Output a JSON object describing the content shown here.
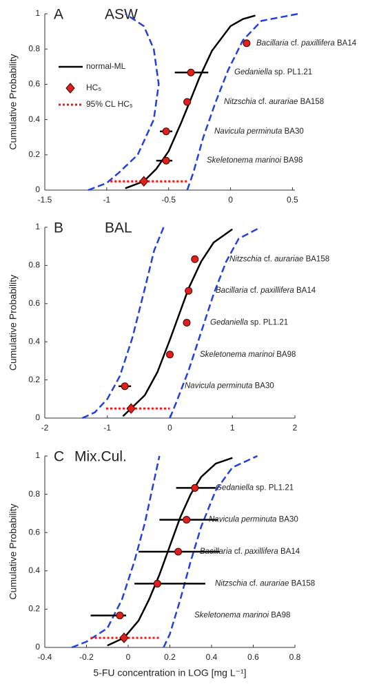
{
  "chart_data": [
    {
      "type": "cdf",
      "panel": "A",
      "title": "ASW",
      "ylabel": "Cumulative Probability",
      "xlim": [
        -1.5,
        0.52
      ],
      "xticks": [
        -1.5,
        -1,
        -0.5,
        0,
        0.5
      ],
      "ylim": [
        0,
        1
      ],
      "yticks": [
        0,
        0.2,
        0.4,
        0.6,
        0.8,
        1
      ],
      "legend": "upper left",
      "fit": {
        "name": "normal-ML",
        "color": "#000000",
        "x": [
          -0.85,
          -0.7,
          -0.6,
          -0.5,
          -0.4,
          -0.33,
          -0.25,
          -0.15,
          0,
          0.1,
          0.2
        ],
        "y": [
          0.01,
          0.05,
          0.12,
          0.22,
          0.38,
          0.5,
          0.64,
          0.79,
          0.93,
          0.97,
          0.99
        ]
      },
      "ci_lower": {
        "color": "#2040e0",
        "x": [
          -1.15,
          -1.0,
          -0.9,
          -0.75,
          -0.62,
          -0.58,
          -0.62,
          -0.7,
          -0.85
        ],
        "y": [
          0,
          0.04,
          0.1,
          0.2,
          0.4,
          0.6,
          0.8,
          0.93,
          1
        ]
      },
      "ci_upper": {
        "color": "#2040e0",
        "x": [
          -0.35,
          -0.3,
          -0.22,
          -0.12,
          -0.02,
          0.1,
          0.25,
          0.55
        ],
        "y": [
          0,
          0.1,
          0.3,
          0.5,
          0.68,
          0.85,
          0.96,
          1
        ]
      },
      "hc5": {
        "name": "HC₅",
        "color": "#e0201a",
        "x": -0.7,
        "y": 0.05
      },
      "hc5_cl": {
        "name": "95% CL HC₅",
        "color": "#ff1010",
        "x": [
          -0.97,
          -0.35
        ],
        "y": 0.05
      },
      "points": {
        "color": "#e0201a",
        "x": [
          0.13,
          -0.32,
          -0.35,
          -0.52,
          -0.52
        ],
        "y": [
          0.833,
          0.667,
          0.5,
          0.333,
          0.167
        ],
        "x_low": [
          null,
          -0.45,
          -0.38,
          -0.57,
          -0.6
        ],
        "x_high": [
          null,
          -0.18,
          -0.32,
          -0.47,
          -0.47
        ],
        "labels": [
          [
            {
              "text": "Bacillaria",
              "italic": true
            },
            {
              "text": " cf. ",
              "italic": false
            },
            {
              "text": "paxillifera",
              "italic": true
            },
            {
              "text": " BA14",
              "italic": false
            }
          ],
          [
            {
              "text": "Gedaniella",
              "italic": true
            },
            {
              "text": "  sp. PL1.21",
              "italic": false
            }
          ],
          [
            {
              "text": "Nitzschia",
              "italic": true
            },
            {
              "text": " cf. ",
              "italic": false
            },
            {
              "text": "aurariae",
              "italic": true
            },
            {
              "text": " BA158",
              "italic": false
            }
          ],
          [
            {
              "text": "Navicula perminuta",
              "italic": true
            },
            {
              "text": " BA30",
              "italic": false
            }
          ],
          [
            {
              "text": "Skeletonema marinoi",
              "italic": true
            },
            {
              "text": " BA98",
              "italic": false
            }
          ]
        ]
      }
    },
    {
      "type": "cdf",
      "panel": "B",
      "title": "BAL",
      "ylabel": "Cumulative Probability",
      "xlim": [
        -2,
        2
      ],
      "xticks": [
        -2,
        -1,
        0,
        1,
        2
      ],
      "ylim": [
        0,
        1
      ],
      "yticks": [
        0,
        0.2,
        0.4,
        0.6,
        0.8,
        1
      ],
      "fit": {
        "color": "#000000",
        "x": [
          -0.75,
          -0.62,
          -0.4,
          -0.2,
          0,
          0.1,
          0.3,
          0.5,
          0.7,
          1.0
        ],
        "y": [
          0.01,
          0.05,
          0.12,
          0.24,
          0.41,
          0.5,
          0.68,
          0.82,
          0.92,
          0.99
        ]
      },
      "ci_lower": {
        "color": "#2040e0",
        "x": [
          -1.4,
          -1.2,
          -1.0,
          -0.8,
          -0.6,
          -0.4,
          -0.25,
          -0.1
        ],
        "y": [
          0,
          0.03,
          0.1,
          0.22,
          0.42,
          0.68,
          0.88,
          1
        ]
      },
      "ci_upper": {
        "color": "#2040e0",
        "x": [
          0,
          0.1,
          0.3,
          0.5,
          0.7,
          0.9,
          1.1,
          1.45
        ],
        "y": [
          0,
          0.08,
          0.25,
          0.45,
          0.65,
          0.82,
          0.94,
          1
        ]
      },
      "hc5": {
        "color": "#e0201a",
        "x": -0.62,
        "y": 0.05
      },
      "hc5_cl": {
        "color": "#ff1010",
        "x": [
          -1.02,
          0.0
        ],
        "y": 0.05
      },
      "points": {
        "color": "#e0201a",
        "x": [
          0.4,
          0.3,
          0.27,
          0,
          -0.72
        ],
        "y": [
          0.833,
          0.667,
          0.5,
          0.333,
          0.167
        ],
        "x_low": [
          null,
          null,
          null,
          null,
          -0.82
        ],
        "x_high": [
          null,
          null,
          null,
          null,
          -0.62
        ],
        "labels": [
          [
            {
              "text": "Nitzschia",
              "italic": true
            },
            {
              "text": " cf. ",
              "italic": false
            },
            {
              "text": "aurariae",
              "italic": true
            },
            {
              "text": " BA158",
              "italic": false
            }
          ],
          [
            {
              "text": "Bacillaria",
              "italic": true
            },
            {
              "text": " cf. ",
              "italic": false
            },
            {
              "text": "paxillifera",
              "italic": true
            },
            {
              "text": " BA14",
              "italic": false
            }
          ],
          [
            {
              "text": "Gedaniella",
              "italic": true
            },
            {
              "text": "  sp. PL1.21",
              "italic": false
            }
          ],
          [
            {
              "text": "Skeletonema marinoi",
              "italic": true
            },
            {
              "text": " BA98",
              "italic": false
            }
          ],
          [
            {
              "text": "Navicula perminuta",
              "italic": true
            },
            {
              "text": " BA30",
              "italic": false
            }
          ]
        ]
      }
    },
    {
      "type": "cdf",
      "panel": "C",
      "title": "Mix.Cul.",
      "ylabel": "Cumulative Probability",
      "xlabel": "5-FU concentration in LOG [mg L⁻¹]",
      "xlim": [
        -0.4,
        0.8
      ],
      "xticks": [
        -0.4,
        -0.2,
        0,
        0.2,
        0.4,
        0.6,
        0.8
      ],
      "ylim": [
        0,
        1
      ],
      "yticks": [
        0,
        0.2,
        0.4,
        0.6,
        0.8,
        1
      ],
      "fit": {
        "color": "#000000",
        "x": [
          -0.1,
          -0.02,
          0.05,
          0.1,
          0.15,
          0.19,
          0.25,
          0.3,
          0.35,
          0.42,
          0.5
        ],
        "y": [
          0.01,
          0.05,
          0.14,
          0.25,
          0.38,
          0.5,
          0.68,
          0.8,
          0.89,
          0.96,
          0.99
        ]
      },
      "ci_lower": {
        "color": "#2040e0",
        "x": [
          -0.27,
          -0.2,
          -0.1,
          -0.03,
          0.03,
          0.08,
          0.12,
          0.15
        ],
        "y": [
          0,
          0.03,
          0.1,
          0.25,
          0.45,
          0.65,
          0.85,
          1
        ]
      },
      "ci_upper": {
        "color": "#2040e0",
        "x": [
          0.17,
          0.2,
          0.25,
          0.3,
          0.35,
          0.42,
          0.5,
          0.62
        ],
        "y": [
          0,
          0.07,
          0.25,
          0.45,
          0.63,
          0.82,
          0.94,
          1
        ]
      },
      "hc5": {
        "color": "#e0201a",
        "x": -0.02,
        "y": 0.05
      },
      "hc5_cl": {
        "color": "#ff1010",
        "x": [
          -0.18,
          0.15
        ],
        "y": 0.05
      },
      "points": {
        "color": "#e0201a",
        "x": [
          0.32,
          0.28,
          0.24,
          0.14,
          -0.04
        ],
        "y": [
          0.833,
          0.667,
          0.5,
          0.333,
          0.167
        ],
        "x_low": [
          0.23,
          0.15,
          0.05,
          0.03,
          -0.18
        ],
        "x_high": [
          0.42,
          0.43,
          0.44,
          0.37,
          -0.01
        ],
        "labels": [
          [
            {
              "text": "Gedaniella",
              "italic": true
            },
            {
              "text": "  sp. PL1.21",
              "italic": false
            }
          ],
          [
            {
              "text": "Navicula perminuta",
              "italic": true
            },
            {
              "text": " BA30",
              "italic": false
            }
          ],
          [
            {
              "text": "Bacillaria",
              "italic": true
            },
            {
              "text": " cf. ",
              "italic": false
            },
            {
              "text": "paxillifera",
              "italic": true
            },
            {
              "text": " BA14",
              "italic": false
            }
          ],
          [
            {
              "text": "Nitzschia",
              "italic": true
            },
            {
              "text": " cf. ",
              "italic": false
            },
            {
              "text": "aurariae",
              "italic": true
            },
            {
              "text": " BA158",
              "italic": false
            }
          ],
          [
            {
              "text": "Skeletonema marinoi",
              "italic": true
            },
            {
              "text": " BA98",
              "italic": false
            }
          ]
        ]
      }
    }
  ]
}
